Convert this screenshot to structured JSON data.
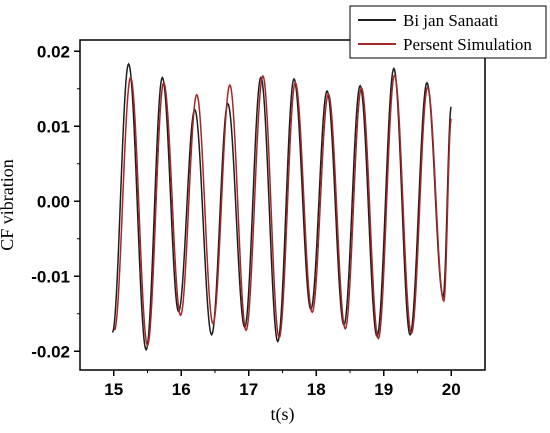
{
  "chart_data": {
    "type": "line",
    "title": "",
    "xlabel": "t(s)",
    "ylabel": "CF vibration",
    "xlim": [
      14.5,
      20.5
    ],
    "ylim": [
      -0.0225,
      0.0215
    ],
    "xticks": [
      15,
      16,
      17,
      18,
      19,
      20
    ],
    "xtick_labels": [
      "15",
      "16",
      "17",
      "18",
      "19",
      "20"
    ],
    "yticks": [
      0.02,
      0.01,
      0.0,
      -0.01,
      -0.02
    ],
    "ytick_labels": [
      "0.02",
      "0.01",
      "0.00",
      "-0.01",
      "-0.02"
    ],
    "grid": false,
    "legend_position": "top-right",
    "series": [
      {
        "name": "Bi jan Sanaati",
        "color": "#1e1e1e",
        "x": [
          14.98,
          15.22,
          15.48,
          15.72,
          15.96,
          16.2,
          16.45,
          16.69,
          16.94,
          17.18,
          17.43,
          17.67,
          17.92,
          18.16,
          18.41,
          18.65,
          18.9,
          19.15,
          19.39,
          19.64,
          19.88,
          20.0
        ],
        "y": [
          -0.0175,
          0.0183,
          -0.0198,
          0.0165,
          -0.0147,
          0.0122,
          -0.0178,
          0.013,
          -0.0168,
          0.0165,
          -0.0187,
          0.0163,
          -0.0144,
          0.0147,
          -0.0165,
          0.0154,
          -0.018,
          0.0177,
          -0.0178,
          0.0158,
          -0.0127,
          0.0126
        ]
      },
      {
        "name": "Persent Simulation",
        "color": "#a3282a",
        "x": [
          15.01,
          15.25,
          15.5,
          15.74,
          15.99,
          16.23,
          16.47,
          16.72,
          16.96,
          17.21,
          17.45,
          17.69,
          17.94,
          18.18,
          18.43,
          18.67,
          18.92,
          19.16,
          19.41,
          19.65,
          19.89,
          20.0
        ],
        "y": [
          -0.0172,
          0.0165,
          -0.0192,
          0.0158,
          -0.0152,
          0.0142,
          -0.0163,
          0.0155,
          -0.0172,
          0.0167,
          -0.0182,
          0.0158,
          -0.0148,
          0.0143,
          -0.017,
          0.0151,
          -0.0183,
          0.0168,
          -0.0176,
          0.0152,
          -0.0133,
          0.011
        ]
      }
    ]
  }
}
